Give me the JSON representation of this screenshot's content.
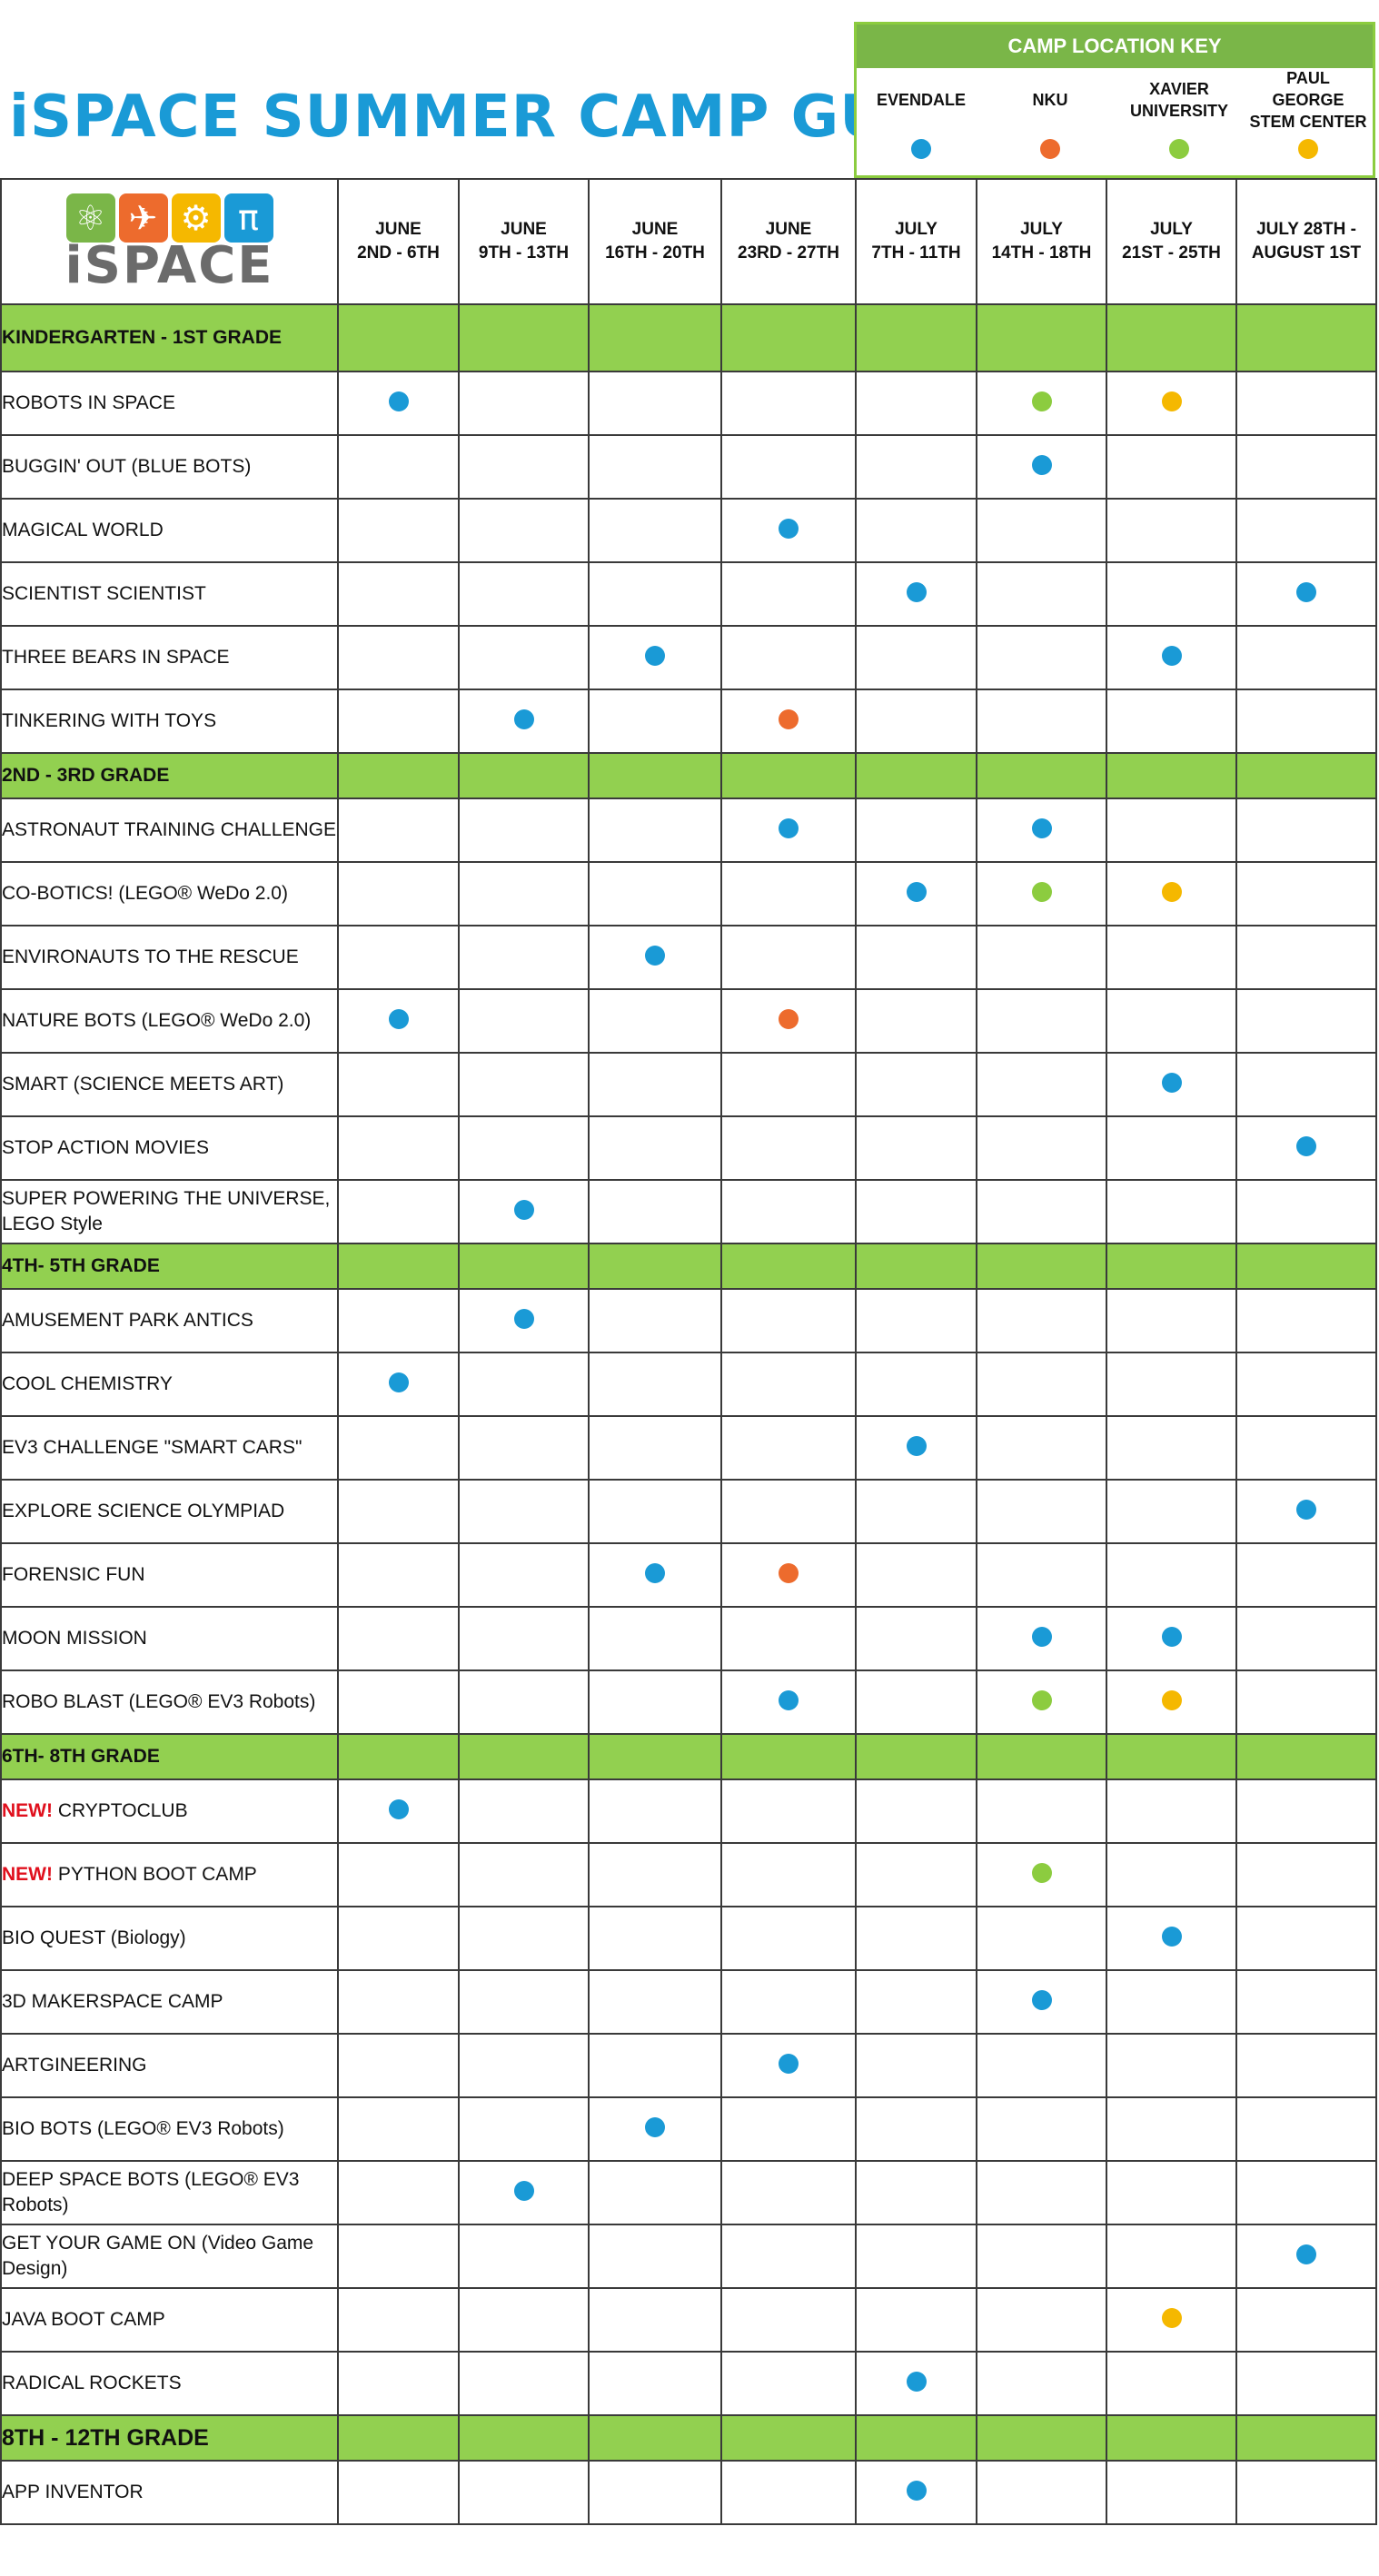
{
  "title": "iSPACE SUMMER CAMP GUIDE",
  "key": {
    "heading": "CAMP LOCATION KEY",
    "locations": [
      {
        "label": "EVENDALE",
        "color": "#1a9ad6"
      },
      {
        "label": "NKU",
        "color": "#ed6b2d"
      },
      {
        "label": "XAVIER UNIVERSITY",
        "color": "#8ccc3f"
      },
      {
        "label": "PAUL GEORGE STEM CENTER",
        "color": "#f5b800"
      }
    ]
  },
  "logo": {
    "text": "iSPACE",
    "icons": [
      "atom-icon",
      "rocket-icon",
      "gear-icon",
      "pi-icon"
    ]
  },
  "weeks": [
    [
      "JUNE",
      "2ND - 6TH"
    ],
    [
      "JUNE",
      "9TH - 13TH"
    ],
    [
      "JUNE",
      "16TH - 20TH"
    ],
    [
      "JUNE",
      "23RD - 27TH"
    ],
    [
      "JULY",
      "7TH - 11TH"
    ],
    [
      "JULY",
      "14TH - 18TH"
    ],
    [
      "JULY",
      "21ST - 25TH"
    ],
    [
      "JULY 28TH -",
      "AUGUST 1ST"
    ]
  ],
  "rows": [
    {
      "type": "grade",
      "label": "KINDERGARTEN - 1ST GRADE",
      "h": 72
    },
    {
      "type": "camp",
      "label": "ROBOTS IN SPACE",
      "dots": [
        "E",
        "",
        "",
        "",
        "",
        "X",
        "P",
        ""
      ]
    },
    {
      "type": "camp",
      "label": "BUGGIN' OUT (BLUE BOTS)",
      "dots": [
        "",
        "",
        "",
        "",
        "",
        "E",
        "",
        ""
      ]
    },
    {
      "type": "camp",
      "label": "MAGICAL WORLD",
      "dots": [
        "",
        "",
        "",
        "E",
        "",
        "",
        "",
        ""
      ]
    },
    {
      "type": "camp",
      "label": "SCIENTIST SCIENTIST",
      "dots": [
        "",
        "",
        "",
        "",
        "E",
        "",
        "",
        "E"
      ]
    },
    {
      "type": "camp",
      "label": "THREE BEARS IN SPACE",
      "dots": [
        "",
        "",
        "E",
        "",
        "",
        "",
        "E",
        ""
      ]
    },
    {
      "type": "camp",
      "label": "TINKERING WITH TOYS",
      "dots": [
        "",
        "E",
        "",
        "N",
        "",
        "",
        "",
        ""
      ]
    },
    {
      "type": "grade",
      "label": "2ND - 3RD GRADE",
      "h": 48
    },
    {
      "type": "camp",
      "label": "ASTRONAUT TRAINING CHALLENGE",
      "dots": [
        "",
        "",
        "",
        "E",
        "",
        "E",
        "",
        ""
      ]
    },
    {
      "type": "camp",
      "label": "CO-BOTICS!  (LEGO® WeDo 2.0)",
      "dots": [
        "",
        "",
        "",
        "",
        "E",
        "X",
        "P",
        ""
      ]
    },
    {
      "type": "camp",
      "label": "ENVIRONAUTS TO THE RESCUE",
      "dots": [
        "",
        "",
        "E",
        "",
        "",
        "",
        "",
        ""
      ]
    },
    {
      "type": "camp",
      "label": "NATURE BOTS (LEGO® WeDo 2.0)",
      "dots": [
        "E",
        "",
        "",
        "N",
        "",
        "",
        "",
        ""
      ]
    },
    {
      "type": "camp",
      "label": "SMART (SCIENCE MEETS ART)",
      "dots": [
        "",
        "",
        "",
        "",
        "",
        "",
        "E",
        ""
      ]
    },
    {
      "type": "camp",
      "label": "STOP ACTION  MOVIES",
      "dots": [
        "",
        "",
        "",
        "",
        "",
        "",
        "",
        "E"
      ]
    },
    {
      "type": "camp",
      "label": "SUPER POWERING THE UNIVERSE, LEGO Style",
      "dots": [
        "",
        "E",
        "",
        "",
        "",
        "",
        "",
        ""
      ]
    },
    {
      "type": "grade",
      "label": "4TH- 5TH GRADE",
      "h": 48
    },
    {
      "type": "camp",
      "label": "AMUSEMENT PARK ANTICS",
      "dots": [
        "",
        "E",
        "",
        "",
        "",
        "",
        "",
        ""
      ]
    },
    {
      "type": "camp",
      "label": "COOL CHEMISTRY",
      "dots": [
        "E",
        "",
        "",
        "",
        "",
        "",
        "",
        ""
      ]
    },
    {
      "type": "camp",
      "label": "EV3 CHALLENGE \"SMART CARS\"",
      "dots": [
        "",
        "",
        "",
        "",
        "E",
        "",
        "",
        ""
      ]
    },
    {
      "type": "camp",
      "label": "EXPLORE SCIENCE OLYMPIAD",
      "dots": [
        "",
        "",
        "",
        "",
        "",
        "",
        "",
        "E"
      ]
    },
    {
      "type": "camp",
      "label": "FORENSIC FUN",
      "dots": [
        "",
        "",
        "E",
        "N",
        "",
        "",
        "",
        ""
      ]
    },
    {
      "type": "camp",
      "label": "MOON MISSION",
      "dots": [
        "",
        "",
        "",
        "",
        "",
        "E",
        "E",
        ""
      ]
    },
    {
      "type": "camp",
      "label": "ROBO BLAST (LEGO® EV3 Robots)",
      "dots": [
        "",
        "",
        "",
        "E",
        "",
        "X",
        "P",
        ""
      ]
    },
    {
      "type": "grade",
      "label": "6TH- 8TH GRADE",
      "h": 48
    },
    {
      "type": "camp",
      "new": "NEW!",
      "label": "CRYPTOCLUB",
      "dots": [
        "E",
        "",
        "",
        "",
        "",
        "",
        "",
        ""
      ]
    },
    {
      "type": "camp",
      "new": "NEW!",
      "label": "PYTHON BOOT CAMP",
      "dots": [
        "",
        "",
        "",
        "",
        "",
        "X",
        "",
        ""
      ]
    },
    {
      "type": "camp",
      "label": "BIO QUEST (Biology)",
      "dots": [
        "",
        "",
        "",
        "",
        "",
        "",
        "E",
        ""
      ]
    },
    {
      "type": "camp",
      "label": "3D MAKERSPACE CAMP",
      "dots": [
        "",
        "",
        "",
        "",
        "",
        "E",
        "",
        ""
      ]
    },
    {
      "type": "camp",
      "label": "ARTGINEERING",
      "dots": [
        "",
        "",
        "",
        "E",
        "",
        "",
        "",
        ""
      ]
    },
    {
      "type": "camp",
      "label": "BIO BOTS (LEGO® EV3 Robots)",
      "dots": [
        "",
        "",
        "E",
        "",
        "",
        "",
        "",
        ""
      ]
    },
    {
      "type": "camp",
      "label": "DEEP SPACE BOTS (LEGO® EV3 Robots)",
      "dots": [
        "",
        "E",
        "",
        "",
        "",
        "",
        "",
        ""
      ]
    },
    {
      "type": "camp",
      "label": "GET YOUR GAME ON (Video Game Design)",
      "dots": [
        "",
        "",
        "",
        "",
        "",
        "",
        "",
        "E"
      ]
    },
    {
      "type": "camp",
      "label": "JAVA BOOT CAMP",
      "dots": [
        "",
        "",
        "",
        "",
        "",
        "",
        "P",
        ""
      ]
    },
    {
      "type": "camp",
      "label": "RADICAL ROCKETS",
      "dots": [
        "",
        "",
        "",
        "",
        "E",
        "",
        "",
        ""
      ]
    },
    {
      "type": "grade",
      "big": true,
      "label": "8TH - 12TH GRADE",
      "h": 48
    },
    {
      "type": "camp",
      "label": "APP INVENTOR",
      "dots": [
        "",
        "",
        "",
        "",
        "E",
        "",
        "",
        ""
      ]
    }
  ]
}
